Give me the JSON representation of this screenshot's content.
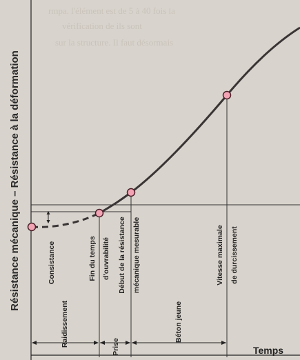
{
  "axes": {
    "y_label": "Résistance mécanique – Résistance à la déformation",
    "x_label": "Temps"
  },
  "point_labels": {
    "consistance": "Consistance",
    "fin_ouvrabilite": [
      "Fin du temps",
      "d'ouvrabilité"
    ],
    "debut_resistance": [
      "Début de la résistance",
      "mécanique mesurable"
    ],
    "vitesse_max": [
      "Vitesse maximale",
      "de durcissement"
    ]
  },
  "phases": [
    "Raidissement",
    "Prise",
    "Béton jeune"
  ],
  "bleed_text": [
    "rmpa. l'élément est de 5 à 40 fois la",
    "vérification de ils sont",
    "sur la structure. Il faut désormais"
  ],
  "colors": {
    "curve": "#3a3535",
    "marker_fill": "#f2a3b4",
    "marker_stroke": "#4a2028",
    "background": "#d8d3cc"
  }
}
